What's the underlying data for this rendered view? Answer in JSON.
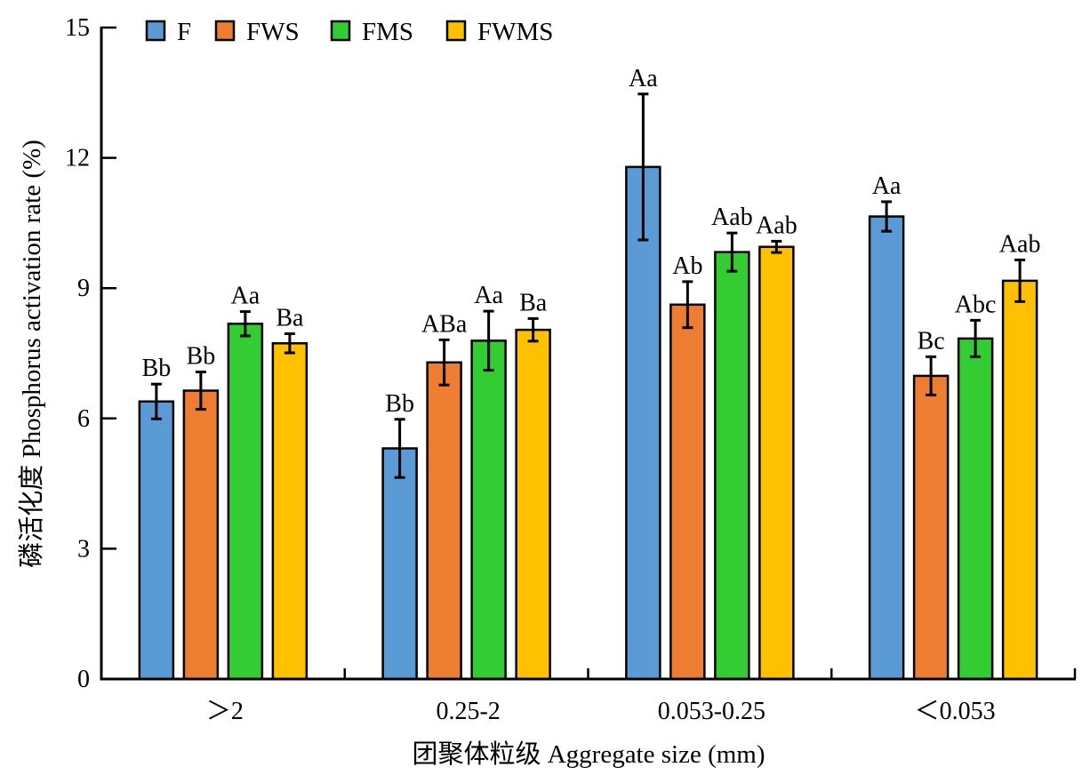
{
  "chart_data": {
    "type": "bar",
    "title": "",
    "xlabel": "团聚体粒级 Aggregate size (mm)",
    "ylabel": "磷活化度 Phosphorus activation rate (%)",
    "ylim": [
      0,
      15
    ],
    "yticks": [
      "0",
      "3",
      "6",
      "9",
      "12",
      "15"
    ],
    "ytick_values": [
      0,
      3,
      6,
      9,
      12,
      15
    ],
    "categories": [
      "＞2",
      "0.25-2",
      "0.053-0.25",
      "＜0.053"
    ],
    "legend_position": "top-left",
    "grid": false,
    "series": [
      {
        "name": "F",
        "color": "#5b9bd5",
        "values": [
          6.39,
          5.31,
          11.79,
          10.65
        ],
        "errors": [
          0.4,
          0.67,
          1.68,
          0.34
        ],
        "labels": [
          "Bb",
          "Bb",
          "Aa",
          "Aa"
        ]
      },
      {
        "name": "FWS",
        "color": "#ed7d31",
        "values": [
          6.64,
          7.29,
          8.62,
          6.98
        ],
        "errors": [
          0.43,
          0.52,
          0.53,
          0.44
        ],
        "labels": [
          "Bb",
          "ABa",
          "Ab",
          "Bc"
        ]
      },
      {
        "name": "FMS",
        "color": "#33cc33",
        "values": [
          8.18,
          7.79,
          9.83,
          7.84
        ],
        "errors": [
          0.28,
          0.68,
          0.44,
          0.42
        ],
        "labels": [
          "Aa",
          "Aa",
          "Aab",
          "Abc"
        ]
      },
      {
        "name": "FWMS",
        "color": "#ffc000",
        "values": [
          7.73,
          8.04,
          9.95,
          9.17
        ],
        "errors": [
          0.22,
          0.26,
          0.13,
          0.48
        ],
        "labels": [
          "Ba",
          "Ba",
          "Aab",
          "Aab"
        ]
      }
    ]
  }
}
